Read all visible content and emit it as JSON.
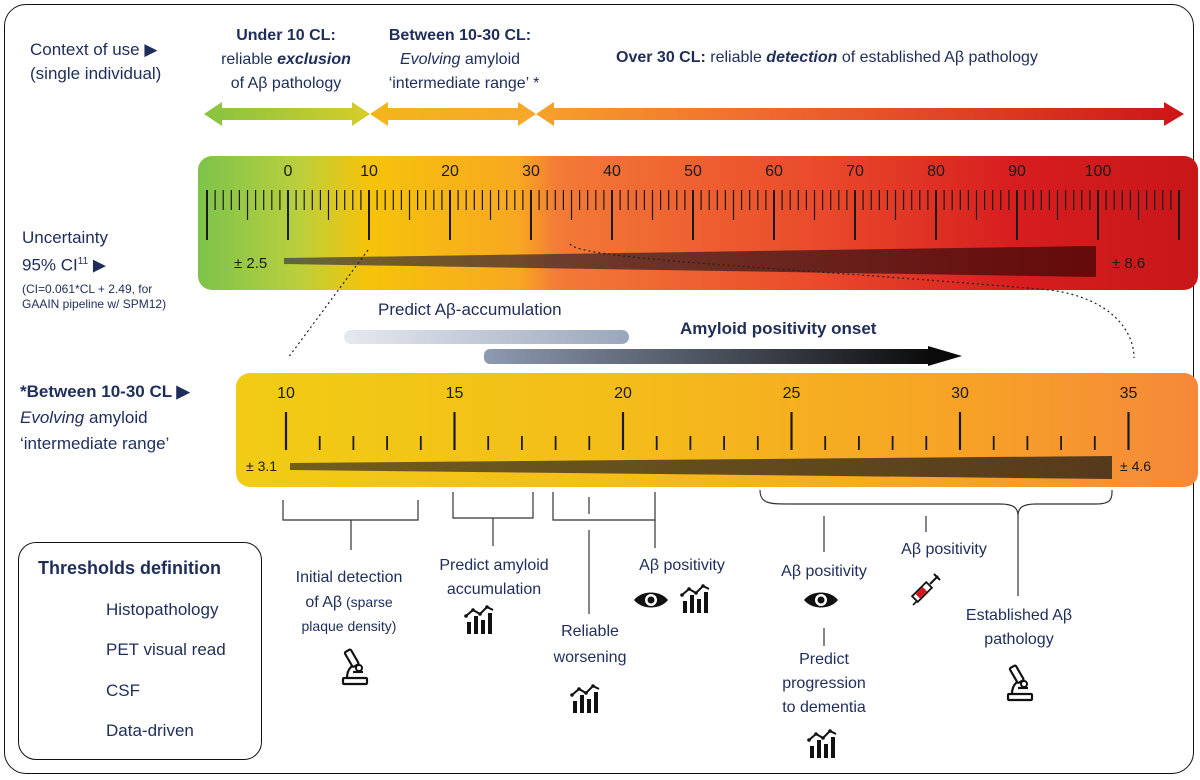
{
  "context": {
    "label_line1": "Context of use ▶",
    "label_line2": "(single individual)",
    "under10_title": "Under 10 CL:",
    "under10_line2": "reliable ",
    "under10_line2_em": "exclusion",
    "under10_line3": "of Aβ pathology",
    "between_title": "Between 10-30 CL:",
    "between_line2_em": "Evolving",
    "between_line2": " amyloid",
    "between_line3": "‘intermediate range’ *",
    "over30_title": "Over 30 CL:",
    "over30_text1": " reliable ",
    "over30_em": "detection",
    "over30_text2": " of established Aβ pathology"
  },
  "uncertainty": {
    "line1": "Uncertainty",
    "line2": "95% CI",
    "line2_sup": "11",
    "line2_arrow": " ▶",
    "note1": "(CI=0.061*CL + 2.49, for",
    "note2": "GAAIN pipeline w/ SPM12)",
    "left_value": "± 2.5",
    "right_value": "± 8.6"
  },
  "scale_main": {
    "tick_labels": [
      "0",
      "10",
      "20",
      "30",
      "40",
      "50",
      "60",
      "70",
      "80",
      "90",
      "100"
    ]
  },
  "arrows": {
    "predict_accumulation": "Predict Aβ-accumulation",
    "positivity_onset": "Amyloid positivity onset"
  },
  "intermediate": {
    "line1": "*Between 10-30 CL ▶",
    "line2_em": "Evolving",
    "line2": " amyloid",
    "line3": "‘intermediate range’",
    "tick_labels": [
      "10",
      "15",
      "20",
      "25",
      "30",
      "35"
    ],
    "left_value": "± 3.1",
    "right_value": "± 4.6"
  },
  "thresholds": {
    "initial_detection_1": "Initial detection",
    "initial_detection_2": "of Aβ",
    "initial_detection_3": " (sparse",
    "initial_detection_4": "plaque density)",
    "predict_amyloid_1": "Predict amyloid",
    "predict_amyloid_2": "accumulation",
    "reliable_worsening_1": "Reliable",
    "reliable_worsening_2": "worsening",
    "ab_positivity_data": "Aβ positivity",
    "ab_positivity_pet": "Aβ positivity",
    "ab_positivity_csf": "Aβ positivity",
    "predict_progression_1": "Predict",
    "predict_progression_2": "progression",
    "predict_progression_3": "to dementia",
    "established_1": "Established Aβ",
    "established_2": "pathology"
  },
  "legend": {
    "title": "Thresholds definition",
    "items": [
      "Histopathology",
      "PET visual read",
      "CSF",
      "Data-driven"
    ]
  },
  "colors": {
    "navy_text": "#1e2d5a",
    "green": "#7dc34b",
    "orange": "#f8a820",
    "red": "#c81719"
  }
}
